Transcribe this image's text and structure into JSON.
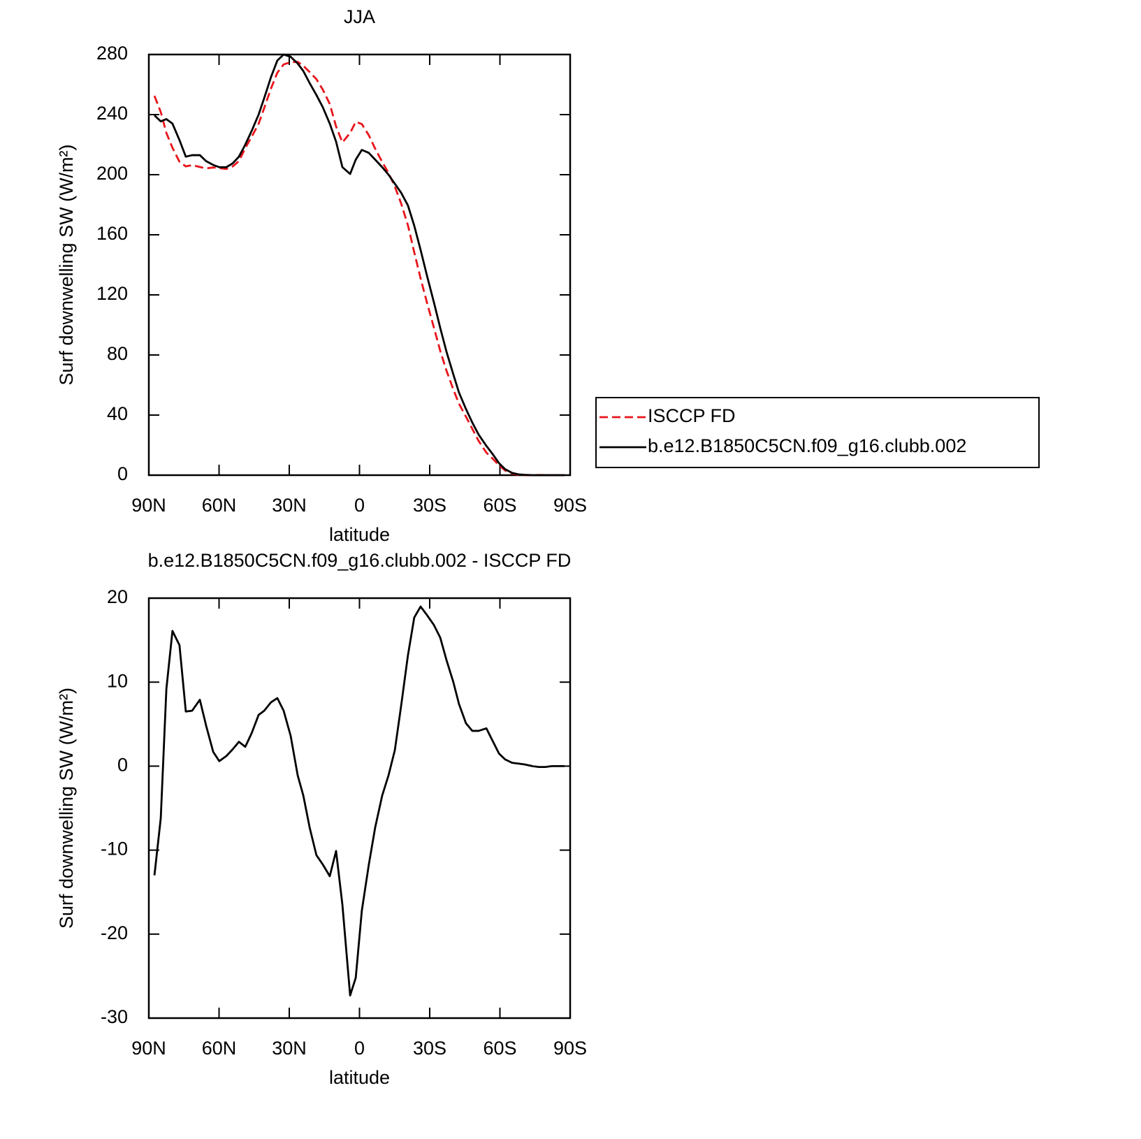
{
  "chart_data": [
    {
      "type": "line",
      "title": "JJA",
      "xlabel": "latitude",
      "ylabel": "Surf downwelling SW (W/m²)",
      "xlim": [
        90,
        -90
      ],
      "xticks": [
        {
          "value": 90,
          "label": "90N"
        },
        {
          "value": 60,
          "label": "60N"
        },
        {
          "value": 30,
          "label": "30N"
        },
        0,
        {
          "value": -30,
          "label": "30S"
        },
        {
          "value": -60,
          "label": "60S"
        },
        {
          "value": -90,
          "label": "90S"
        }
      ],
      "ylim": [
        0,
        280
      ],
      "yticks": [
        0,
        40,
        80,
        120,
        160,
        200,
        240,
        280
      ],
      "legend": "right",
      "x": [
        87.6,
        84.9,
        82.5,
        79.9,
        76.9,
        74.2,
        71.5,
        68.2,
        65.5,
        62.5,
        59.9,
        56.9,
        54.2,
        51.5,
        48.8,
        46.1,
        43.1,
        40.7,
        37.8,
        35.1,
        32.4,
        29.4,
        26.4,
        24.0,
        21.3,
        18.4,
        15.7,
        12.7,
        10.0,
        7.3,
        4.0,
        1.6,
        -1.0,
        -4.0,
        -6.7,
        -9.7,
        -12.4,
        -15.1,
        -17.8,
        -20.7,
        -23.4,
        -26.1,
        -28.8,
        -31.8,
        -34.5,
        -37.2,
        -40.1,
        -42.5,
        -45.5,
        -48.2,
        -50.9,
        -54.2,
        -56.9,
        -59.6,
        -62.2,
        -65.2,
        -67.9,
        -70.6,
        -73.9,
        -76.6,
        -79.3,
        -82.2,
        -84.9,
        -87.6
      ],
      "series": [
        {
          "name": "ISCCP FD",
          "color": "#e8151b",
          "dash": true,
          "values": [
            252.5,
            241.7,
            227.8,
            217.9,
            208.6,
            205.5,
            206.4,
            205.1,
            204.2,
            204.8,
            204.4,
            203.8,
            205.5,
            209.1,
            217.7,
            225.1,
            233.9,
            244.4,
            257.4,
            267.9,
            273.4,
            274.9,
            275.1,
            272.5,
            268.3,
            263.6,
            256.7,
            247.1,
            232.1,
            221.5,
            227.8,
            235.2,
            233.7,
            226.2,
            217.3,
            208.5,
            201.1,
            192.1,
            180.8,
            166.3,
            148.3,
            131,
            115,
            98.2,
            82.7,
            69.4,
            57,
            47.6,
            38.9,
            30.8,
            22.8,
            15,
            11,
            6.5,
            3.2,
            1.1,
            0.2,
            0,
            0,
            0.1,
            0.1,
            0,
            0,
            0
          ]
        },
        {
          "name": "b.e12.B1850C5CN.f09_g16.clubb.002",
          "color": "#000000",
          "values": [
            239.5,
            235.5,
            237,
            234,
            223,
            212,
            213,
            213,
            209,
            206.5,
            205,
            205,
            207.5,
            212,
            220,
            229,
            240,
            251,
            265,
            276,
            280,
            278.5,
            274,
            269,
            261,
            253,
            245,
            234,
            222,
            205,
            200.5,
            210,
            216.5,
            214.5,
            210,
            205,
            200,
            194,
            188,
            179.5,
            166,
            150,
            133,
            115,
            98,
            82,
            67,
            55,
            44,
            35,
            27,
            19.5,
            14,
            8,
            4,
            1.5,
            0.5,
            0.2,
            0,
            0,
            0,
            0,
            0,
            0
          ]
        }
      ]
    },
    {
      "type": "line",
      "title": "b.e12.B1850C5CN.f09_g16.clubb.002 - ISCCP FD",
      "xlabel": "latitude",
      "ylabel": "Surf downwelling SW (W/m²)",
      "xlim": [
        90,
        -90
      ],
      "xticks": [
        {
          "value": 90,
          "label": "90N"
        },
        {
          "value": 60,
          "label": "60N"
        },
        {
          "value": 30,
          "label": "30N"
        },
        0,
        {
          "value": -30,
          "label": "30S"
        },
        {
          "value": -60,
          "label": "60S"
        },
        {
          "value": -90,
          "label": "90S"
        }
      ],
      "ylim": [
        -30,
        20
      ],
      "yticks": [
        -30,
        -20,
        -10,
        0,
        10,
        20
      ],
      "color": "#000000",
      "x": [
        87.6,
        84.9,
        82.5,
        79.9,
        76.9,
        74.2,
        71.5,
        68.2,
        65.5,
        62.5,
        59.9,
        56.9,
        54.2,
        51.5,
        48.8,
        46.1,
        43.1,
        40.7,
        37.8,
        35.1,
        32.4,
        29.4,
        26.4,
        24.0,
        21.3,
        18.4,
        15.7,
        12.7,
        10.0,
        7.3,
        4.0,
        1.6,
        -1.0,
        -4.0,
        -6.7,
        -9.7,
        -12.4,
        -15.1,
        -17.8,
        -20.7,
        -23.4,
        -26.1,
        -28.8,
        -31.8,
        -34.5,
        -37.2,
        -40.1,
        -42.5,
        -45.5,
        -48.2,
        -50.9,
        -54.2,
        -56.9,
        -59.6,
        -62.2,
        -65.2,
        -67.9,
        -70.6,
        -73.9,
        -76.6,
        -79.3,
        -82.2,
        -84.9,
        -87.6
      ],
      "values": [
        -13,
        -6.2,
        9.2,
        16.1,
        14.4,
        6.5,
        6.6,
        7.9,
        4.8,
        1.7,
        0.6,
        1.2,
        2,
        2.9,
        2.3,
        3.9,
        6.1,
        6.6,
        7.6,
        8.1,
        6.6,
        3.6,
        -1.1,
        -3.5,
        -7.3,
        -10.6,
        -11.7,
        -13.1,
        -10.1,
        -16.5,
        -27.3,
        -25.2,
        -17.2,
        -11.7,
        -7.3,
        -3.5,
        -1.1,
        1.9,
        7.2,
        13.2,
        17.7,
        19,
        18,
        16.8,
        15.3,
        12.6,
        10,
        7.4,
        5.1,
        4.2,
        4.2,
        4.5,
        3,
        1.5,
        0.8,
        0.4,
        0.3,
        0.2,
        0,
        -0.1,
        -0.1,
        0,
        0,
        0
      ]
    }
  ]
}
